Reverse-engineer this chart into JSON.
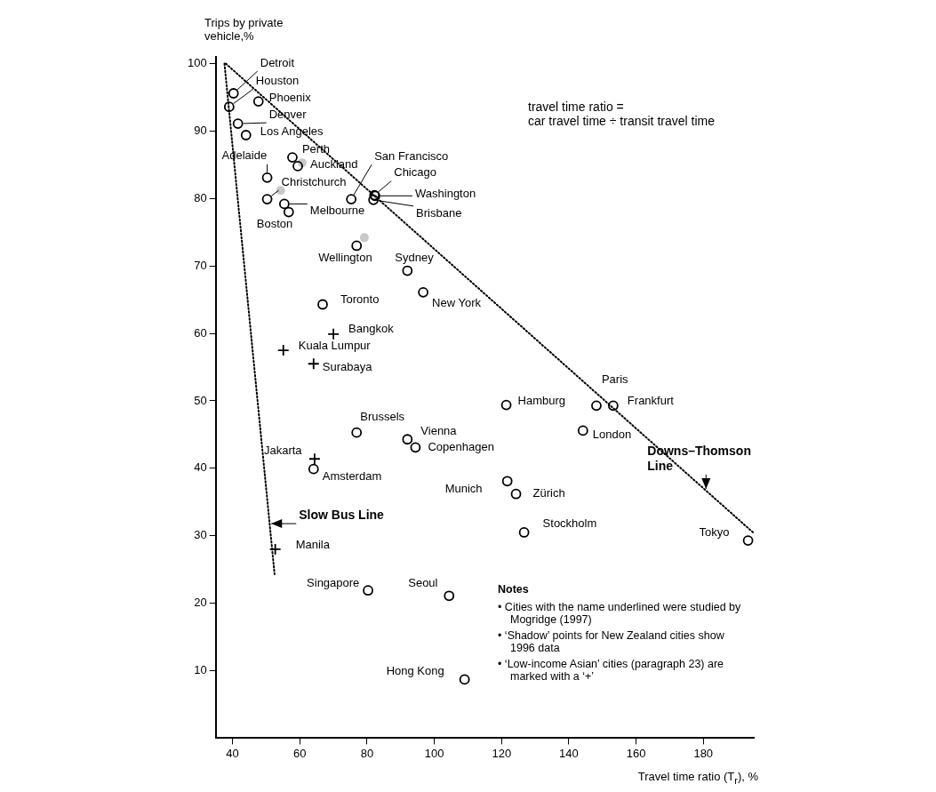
{
  "chart_data": {
    "type": "scatter",
    "xlabel": "Travel time ratio (T$_{r}$), %",
    "ylabel": "Trips by private vehicle,%",
    "xlim": [
      35,
      195
    ],
    "xticks": [
      40,
      60,
      80,
      100,
      120,
      140,
      160,
      180
    ],
    "ylim": [
      0,
      101
    ],
    "yticks": [
      10,
      20,
      30,
      40,
      50,
      60,
      70,
      80,
      90,
      100
    ],
    "grid": false,
    "legend": false,
    "series": [
      {
        "color": "#000000",
        "marker": "circle",
        "x": [
          40.3,
          39,
          47.7,
          41.6,
          44,
          57.8,
          59.4,
          50.3,
          50.3,
          55.4,
          56.7,
          75.3,
          82.2,
          82.4,
          81.9,
          76.9,
          92,
          96.7,
          66.8,
          121.4,
          148.2,
          153.2,
          144.2,
          76.9,
          92,
          94.4,
          64.1,
          121.7,
          124.3,
          126.7,
          193.3,
          80.3,
          104.4,
          109
        ],
        "values": [
          95.6,
          93.6,
          94.4,
          91.1,
          89.4,
          86.1,
          84.8,
          83.1,
          79.9,
          79.2,
          78,
          79.9,
          80.5,
          80.4,
          79.8,
          73,
          69.3,
          66.1,
          64.3,
          49.4,
          49.3,
          49.3,
          45.6,
          45.3,
          44.3,
          43.1,
          39.9,
          38.1,
          36.2,
          30.5,
          29.3,
          21.9,
          21.1,
          8.7
        ]
      },
      {
        "color": "#c8c8c8",
        "marker": "circle",
        "x": [
          60.7,
          54.3,
          79.2
        ],
        "values": [
          85.3,
          81.2,
          74.2
        ]
      },
      {
        "color": "#000000",
        "marker": "cross",
        "x": [
          70,
          55.1,
          64.1,
          64.4,
          52.7
        ],
        "values": [
          59.9,
          57.5,
          55.5,
          41.4,
          28
        ]
      },
      {
        "type": "line",
        "color": "#000000",
        "marker": "none",
        "line_style": "dotted",
        "x": [
          38,
          195
        ],
        "values": [
          100,
          30.4
        ]
      },
      {
        "type": "line",
        "color": "#000000",
        "marker": "none",
        "line_style": "dotted",
        "x": [
          37.6,
          52.5
        ],
        "values": [
          100,
          24.3
        ]
      }
    ],
    "annotations": [
      "travel time ratio =\ncar travel time ÷ transit travel time",
      "Notes",
      "• Cities with the name underlined were studied by Mogridge (1997)",
      "• ‘Shadow’ points for New Zealand cities show 1996 data",
      "• ‘Low-income Asian’ cities (paragraph 23) are marked with a ‘+’",
      {
        "text": "Detroit",
        "x": 40.3,
        "y": 95.6
      },
      {
        "text": "Houston",
        "x": 39,
        "y": 93.6
      },
      {
        "text": "Phoenix",
        "x": 47.7,
        "y": 94.4
      },
      {
        "text": "Denver",
        "x": 41.6,
        "y": 91.1
      },
      {
        "text": "Los Angeles",
        "x": 44,
        "y": 89.4
      },
      {
        "text": "Perth",
        "x": 57.8,
        "y": 86.1
      },
      {
        "text": "Auckland",
        "x": 59.4,
        "y": 84.8
      },
      {
        "text": "Adelaide",
        "x": 50.3,
        "y": 83.1
      },
      {
        "text": "San Francisco",
        "x": 75.3,
        "y": 79.9
      },
      {
        "text": "Chicago",
        "x": 82.2,
        "y": 80.5
      },
      {
        "text": "Washington",
        "x": 82.4,
        "y": 80.4
      },
      {
        "text": "Brisbane",
        "x": 81.9,
        "y": 79.8
      },
      {
        "text": "Christchurch",
        "x": 50.3,
        "y": 79.9
      },
      {
        "text": "Melbourne",
        "x": 55.4,
        "y": 79.2
      },
      {
        "text": "Boston",
        "x": 56.7,
        "y": 78
      },
      {
        "text": "Wellington",
        "x": 76.9,
        "y": 73
      },
      {
        "text": "Sydney",
        "x": 92,
        "y": 69.3
      },
      {
        "text": "Toronto",
        "x": 66.8,
        "y": 64.3
      },
      {
        "text": "New York",
        "x": 96.7,
        "y": 66.1
      },
      {
        "text": "Bangkok",
        "x": 70,
        "y": 59.9
      },
      {
        "text": "Kuala Lumpur",
        "x": 55.1,
        "y": 57.5
      },
      {
        "text": "Surabaya",
        "x": 64.1,
        "y": 55.5
      },
      {
        "text": "Hamburg",
        "x": 121.4,
        "y": 49.4
      },
      {
        "text": "Paris",
        "x": 148.2,
        "y": 49.3
      },
      {
        "text": "Frankfurt",
        "x": 153.2,
        "y": 49.3
      },
      {
        "text": "London",
        "x": 144.2,
        "y": 45.6
      },
      {
        "text": "Brussels",
        "x": 76.9,
        "y": 45.3
      },
      {
        "text": "Vienna",
        "x": 92,
        "y": 44.3
      },
      {
        "text": "Copenhagen",
        "x": 94.4,
        "y": 43.1
      },
      {
        "text": "Jakarta",
        "x": 64.4,
        "y": 41.4
      },
      {
        "text": "Amsterdam",
        "x": 64.1,
        "y": 39.9
      },
      {
        "text": "Munich",
        "x": 121.7,
        "y": 38.1
      },
      {
        "text": "Zürich",
        "x": 124.3,
        "y": 36.2
      },
      {
        "text": "Stockholm",
        "x": 126.7,
        "y": 30.5
      },
      {
        "text": "Tokyo",
        "x": 193.3,
        "y": 29.3
      },
      {
        "text": "Manila",
        "x": 52.7,
        "y": 28
      },
      {
        "text": "Singapore",
        "x": 80.3,
        "y": 21.9
      },
      {
        "text": "Seoul",
        "x": 104.4,
        "y": 21.1
      },
      {
        "text": "Hong Kong",
        "x": 109,
        "y": 8.7
      },
      {
        "text": "Slow Bus Line",
        "x": 51,
        "y": 31.8
      },
      {
        "text": "Downs–Thomson\nLine",
        "x": 180.8,
        "y": 36.7
      }
    ]
  }
}
